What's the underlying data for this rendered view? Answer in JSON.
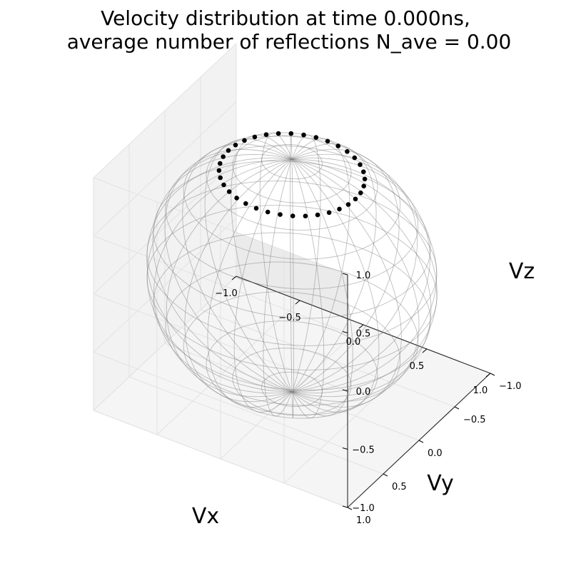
{
  "chart_data": {
    "type": "scatter",
    "projection": "3d",
    "title_lines": [
      "Velocity distribution at time 0.000ns,",
      "average number of reflections N_ave = 0.00"
    ],
    "xlabel": "Vx",
    "ylabel": "Vy",
    "zlabel": "Vz",
    "xlim": [
      -1.0,
      1.0
    ],
    "ylim": [
      -1.0,
      1.0
    ],
    "zlim": [
      -1.0,
      1.0
    ],
    "ticks": [
      -1.0,
      -0.5,
      0.0,
      0.5,
      1.0
    ],
    "tick_labels": [
      "−1.0",
      "−0.5",
      "0.0",
      "0.5",
      "1.0"
    ],
    "grid": true,
    "wireframe": {
      "surface": "unit sphere",
      "color": "#808080"
    },
    "marker_color": "#000000",
    "ring": {
      "polar_angle_deg": 30,
      "points": 36
    }
  }
}
